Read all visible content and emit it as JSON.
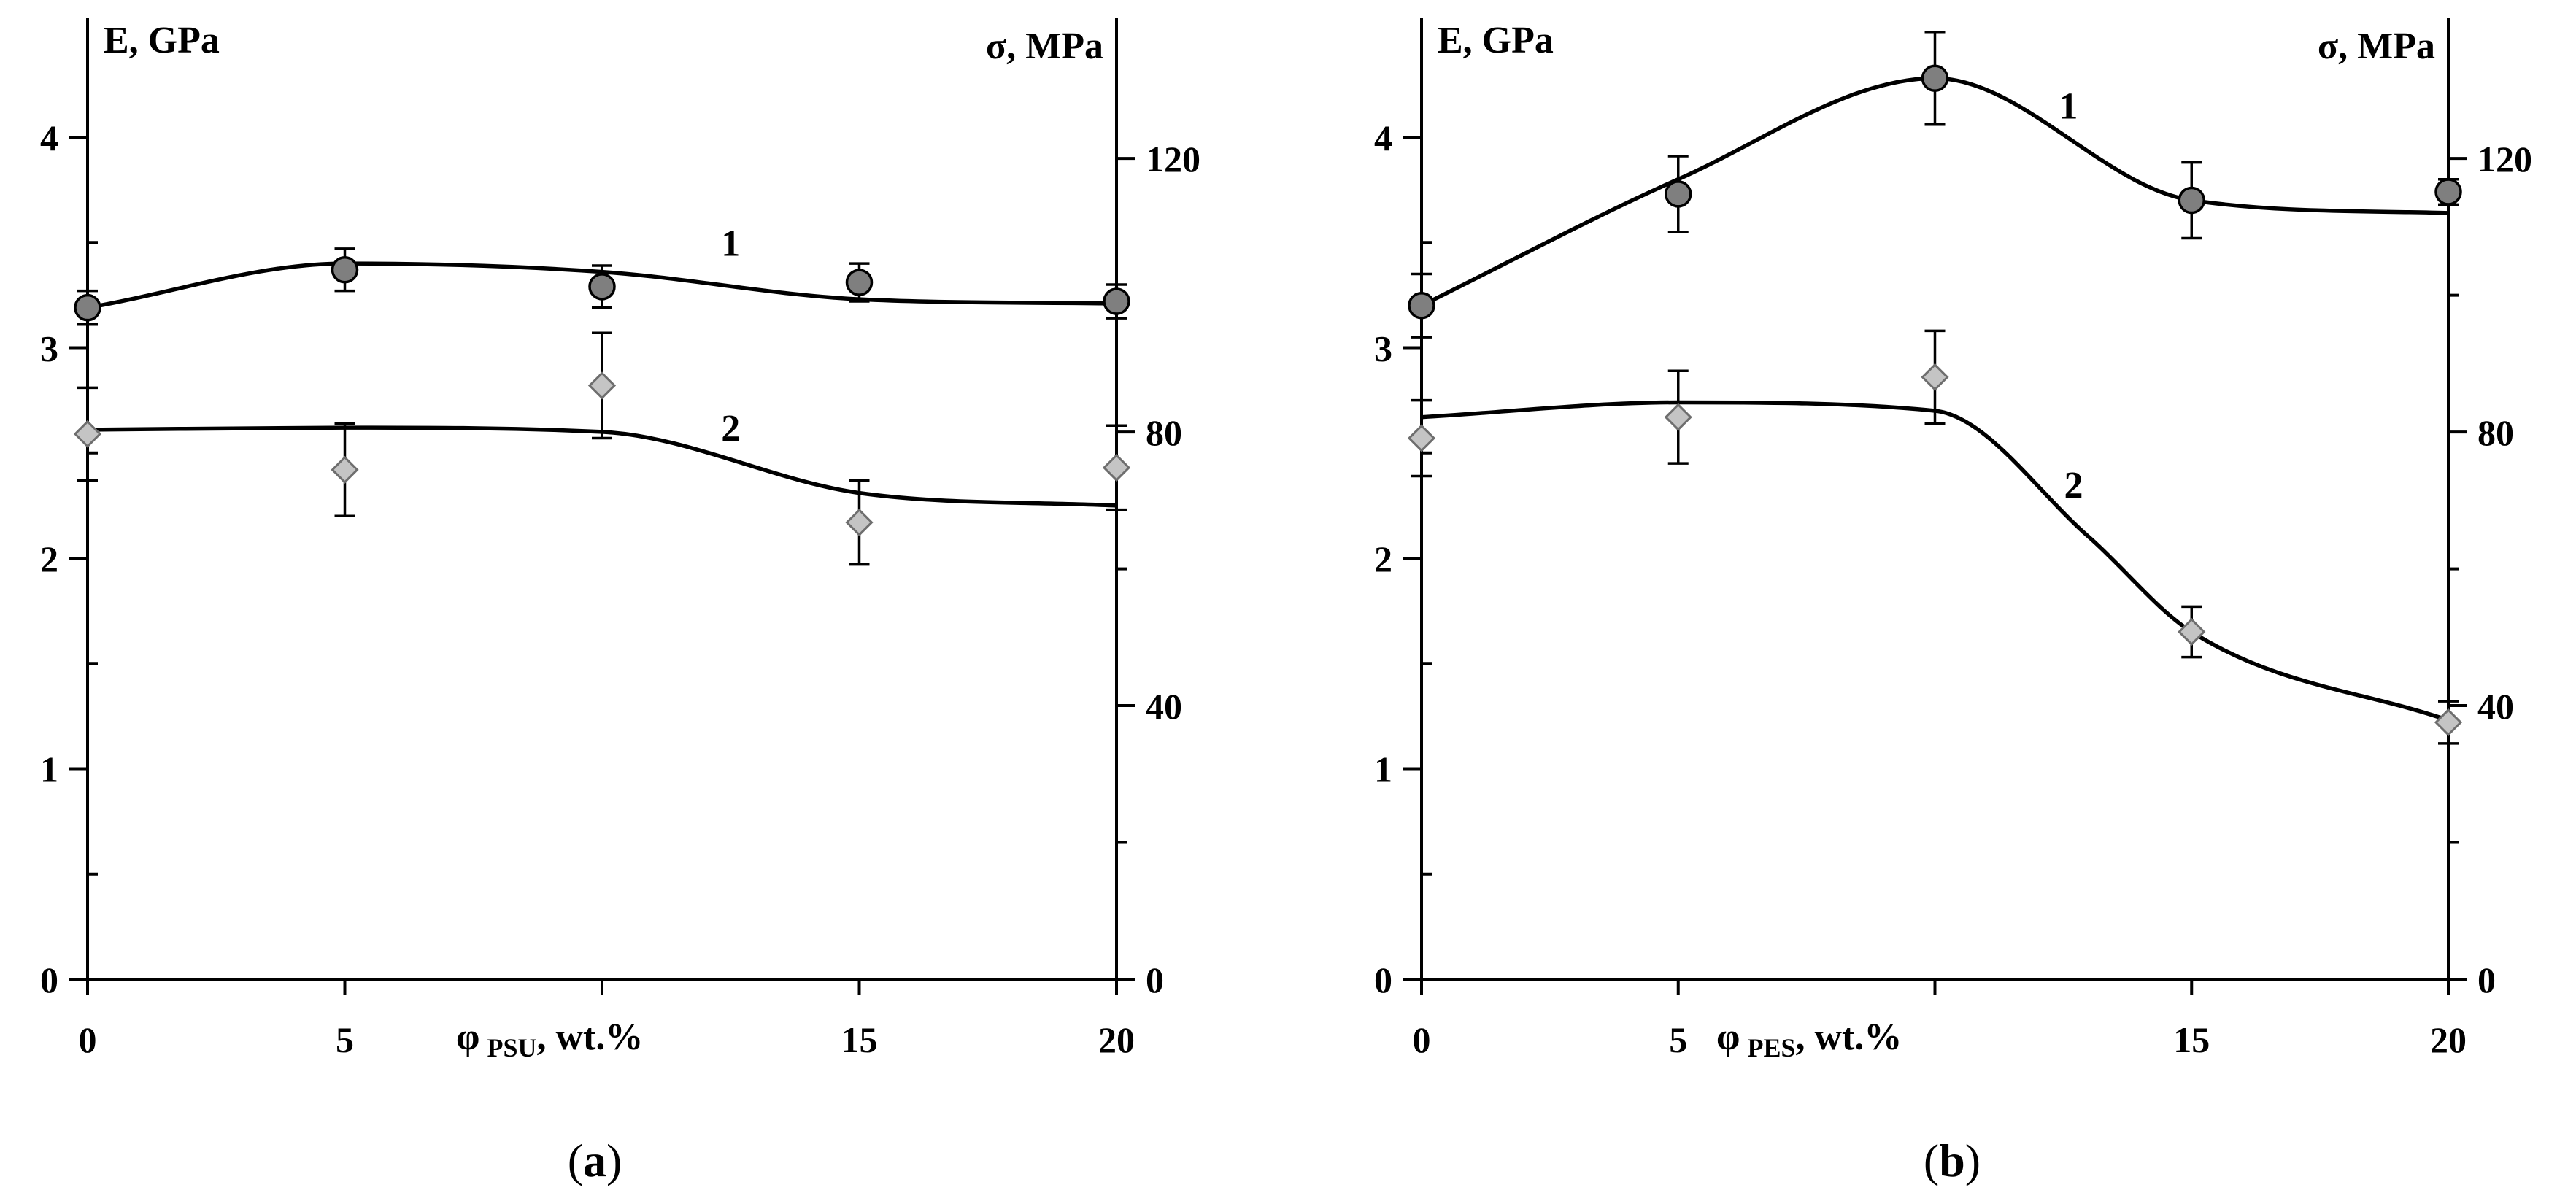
{
  "chart_data": [
    {
      "type": "line",
      "panel_label": "a",
      "title": "",
      "xlabel": {
        "symbol": "φ",
        "sub": "PSU",
        "suffix": ", wt.%"
      },
      "ylabel_left": "E, GPa",
      "ylabel_right": "σ, MPa",
      "x_ticks": [
        0,
        5,
        15,
        20
      ],
      "y_left_ticks": [
        0,
        1,
        2,
        3,
        4
      ],
      "y_right_ticks": [
        0,
        40,
        80,
        120
      ],
      "xlim": [
        0,
        20
      ],
      "ylim_left": [
        0,
        4.5
      ],
      "ylim_right": [
        0,
        138.5
      ],
      "series": [
        {
          "name": "1",
          "marker": "circle",
          "axis": "left",
          "x": [
            0,
            5,
            10,
            15,
            20
          ],
          "values": [
            3.19,
            3.37,
            3.29,
            3.31,
            3.22
          ],
          "error": [
            0.08,
            0.1,
            0.1,
            0.09,
            0.08
          ],
          "fit_x": [
            0,
            5,
            10,
            15,
            20
          ],
          "fit_y": [
            3.19,
            3.4,
            3.36,
            3.23,
            3.21
          ],
          "label_at": [
            12.5,
            3.5
          ]
        },
        {
          "name": "2",
          "marker": "diamond",
          "axis": "left",
          "x": [
            0,
            5,
            10,
            15,
            20
          ],
          "values": [
            2.59,
            2.42,
            2.82,
            2.17,
            2.43
          ],
          "error": [
            0.22,
            0.22,
            0.25,
            0.2,
            0.2
          ],
          "fit_x": [
            0,
            5,
            10,
            15,
            20
          ],
          "fit_y": [
            2.61,
            2.62,
            2.6,
            2.31,
            2.25
          ],
          "label_at": [
            12.5,
            2.62
          ]
        }
      ]
    },
    {
      "type": "line",
      "panel_label": "b",
      "title": "",
      "xlabel": {
        "symbol": "φ",
        "sub": "PES",
        "suffix": ", wt.%"
      },
      "ylabel_left": "E, GPa",
      "ylabel_right": "σ, MPa",
      "x_ticks": [
        0,
        5,
        15,
        20
      ],
      "y_left_ticks": [
        0,
        1,
        2,
        3,
        4
      ],
      "y_right_ticks": [
        0,
        40,
        80,
        120
      ],
      "xlim": [
        0,
        20
      ],
      "ylim_left": [
        0,
        4.5
      ],
      "ylim_right": [
        0,
        138.5
      ],
      "series": [
        {
          "name": "1",
          "marker": "circle",
          "axis": "left",
          "x": [
            0,
            5,
            10,
            15,
            20
          ],
          "values": [
            3.2,
            3.73,
            4.28,
            3.7,
            3.74
          ],
          "error": [
            0.15,
            0.18,
            0.22,
            0.18,
            0.06
          ],
          "fit_x": [
            0,
            5,
            10,
            15,
            20
          ],
          "fit_y": [
            3.2,
            3.8,
            4.28,
            3.7,
            3.64
          ],
          "label_at": [
            12.6,
            4.15
          ]
        },
        {
          "name": "2",
          "marker": "diamond",
          "axis": "left",
          "x": [
            0,
            5,
            10,
            15,
            20
          ],
          "values": [
            2.57,
            2.67,
            2.86,
            1.65,
            1.22
          ],
          "error": [
            0.18,
            0.22,
            0.22,
            0.12,
            0.1
          ],
          "fit_x": [
            0,
            5,
            10,
            13,
            15,
            20
          ],
          "fit_y": [
            2.67,
            2.74,
            2.7,
            2.1,
            1.65,
            1.23
          ],
          "label_at": [
            12.7,
            2.35
          ]
        }
      ]
    }
  ]
}
